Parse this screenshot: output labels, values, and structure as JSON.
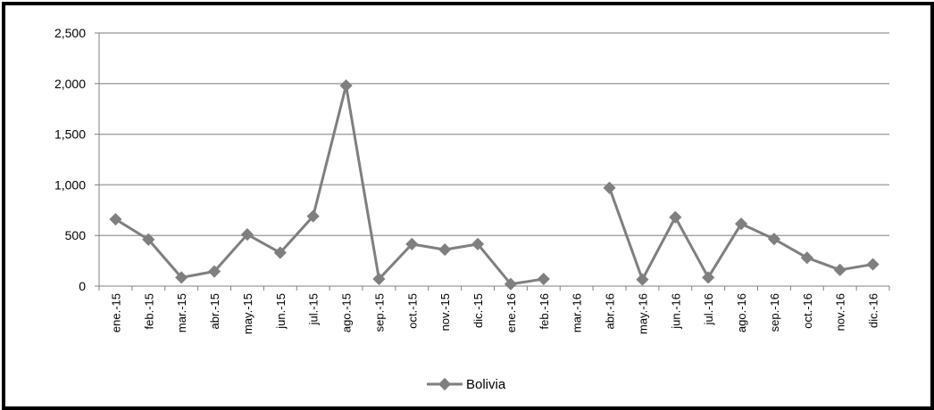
{
  "chart_data": {
    "type": "line",
    "title": "",
    "xlabel": "",
    "ylabel": "",
    "ylim": [
      0,
      2500
    ],
    "yticks": [
      "0",
      "500",
      "1,000",
      "1,500",
      "2,000",
      "2,500"
    ],
    "categories": [
      "ene.-15",
      "feb.-15",
      "mar.-15",
      "abr.-15",
      "may.-15",
      "jun.-15",
      "jul.-15",
      "ago.-15",
      "sep.-15",
      "oct.-15",
      "nov.-15",
      "dic.-15",
      "ene.-16",
      "feb.-16",
      "mar.-16",
      "abr.-16",
      "may.-16",
      "jun.-16",
      "jul.-16",
      "ago.-16",
      "sep.-16",
      "oct.-16",
      "nov.-16",
      "dic.-16"
    ],
    "series": [
      {
        "name": "Bolivia",
        "values": [
          660,
          460,
          85,
          145,
          510,
          330,
          690,
          1980,
          70,
          415,
          360,
          415,
          20,
          70,
          null,
          970,
          65,
          680,
          85,
          615,
          465,
          280,
          160,
          215
        ]
      }
    ],
    "grid": true,
    "legend_position": "bottom",
    "series_color": "#7f7f7f",
    "grid_color": "#a6a6a6"
  }
}
